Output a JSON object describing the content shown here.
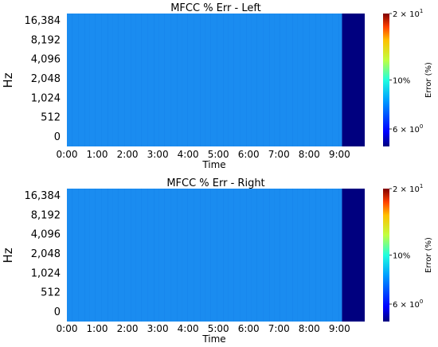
{
  "chart_data": [
    {
      "type": "heatmap",
      "title": "MFCC % Err - Left",
      "xlabel": "Time",
      "ylabel": "Hz",
      "x_ticks": [
        "0:00",
        "1:00",
        "2:00",
        "3:00",
        "4:00",
        "5:00",
        "6:00",
        "7:00",
        "8:00",
        "9:00"
      ],
      "y_ticks": [
        "0",
        "512",
        "1,024",
        "2,048",
        "4,096",
        "8,192",
        "16,384"
      ],
      "x_range_seconds": [
        0,
        590
      ],
      "y_scale": "log",
      "colorscale": "jet",
      "colorbar": {
        "label": "Error (%)",
        "scale": "log",
        "range": [
          5,
          20
        ],
        "ticks": [
          {
            "value": 20,
            "base": "2 × 10",
            "exp": "1"
          },
          {
            "value": 10,
            "base": "10%",
            "exp": ""
          },
          {
            "value": 6,
            "base": "6 × 10",
            "exp": "0"
          }
        ]
      },
      "regions": [
        {
          "x_start_seconds": 0,
          "x_end_seconds": 545,
          "error_percent": 7.6,
          "color": "#1a8cf0"
        },
        {
          "x_start_seconds": 545,
          "x_end_seconds": 590,
          "error_percent": 5.0,
          "color": "#00007f"
        }
      ]
    },
    {
      "type": "heatmap",
      "title": "MFCC % Err - Right",
      "xlabel": "Time",
      "ylabel": "Hz",
      "x_ticks": [
        "0:00",
        "1:00",
        "2:00",
        "3:00",
        "4:00",
        "5:00",
        "6:00",
        "7:00",
        "8:00",
        "9:00"
      ],
      "y_ticks": [
        "0",
        "512",
        "1,024",
        "2,048",
        "4,096",
        "8,192",
        "16,384"
      ],
      "x_range_seconds": [
        0,
        590
      ],
      "y_scale": "log",
      "colorscale": "jet",
      "colorbar": {
        "label": "Error (%)",
        "scale": "log",
        "range": [
          5,
          20
        ],
        "ticks": [
          {
            "value": 20,
            "base": "2 × 10",
            "exp": "1"
          },
          {
            "value": 10,
            "base": "10%",
            "exp": ""
          },
          {
            "value": 6,
            "base": "6 × 10",
            "exp": "0"
          }
        ]
      },
      "regions": [
        {
          "x_start_seconds": 0,
          "x_end_seconds": 545,
          "error_percent": 7.6,
          "color": "#1a8cf0"
        },
        {
          "x_start_seconds": 545,
          "x_end_seconds": 590,
          "error_percent": 5.0,
          "color": "#00007f"
        }
      ]
    }
  ]
}
